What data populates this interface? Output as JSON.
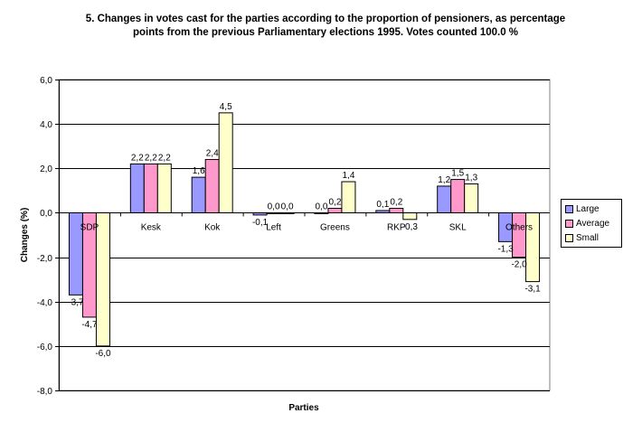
{
  "chart_data": {
    "type": "bar",
    "title_lines": [
      "5. Changes in votes cast for the parties according to the proportion of pensioners, as percentage",
      "points from the previous Parliamentary elections 1995. Votes counted 100.0 %"
    ],
    "xlabel": "Parties",
    "ylabel": "Changes (%)",
    "ylim": [
      -8,
      6
    ],
    "yticks": [
      6,
      4,
      2,
      0,
      -2,
      -4,
      -6,
      -8
    ],
    "ytick_labels": [
      "6,0",
      "4,0",
      "2,0",
      "0,0",
      "-2,0",
      "-4,0",
      "-6,0",
      "-8,0"
    ],
    "categories": [
      "SDP",
      "Kesk",
      "Kok",
      "Left",
      "Greens",
      "RKP",
      "SKL",
      "Others"
    ],
    "series": [
      {
        "name": "Large",
        "color": "#9999FF",
        "values": [
          -3.7,
          2.2,
          1.6,
          -0.1,
          0.0,
          0.1,
          1.2,
          -1.3
        ],
        "labels": [
          "-3,7",
          "2,2",
          "1,6",
          "-0,1",
          "0,0",
          "0,1",
          "1,2",
          "-1,3"
        ]
      },
      {
        "name": "Average",
        "color": "#FF99CC",
        "values": [
          -4.7,
          2.2,
          2.4,
          0.0,
          0.2,
          0.2,
          1.5,
          -2.0
        ],
        "labels": [
          "-4,7",
          "2,2",
          "2,4",
          "0,0",
          "0,2",
          "0,2",
          "1,5",
          "-2,0"
        ]
      },
      {
        "name": "Small",
        "color": "#FFFFCC",
        "values": [
          -6.0,
          2.2,
          4.5,
          0.0,
          1.4,
          -0.3,
          1.3,
          -3.1
        ],
        "labels": [
          "-6,0",
          "2,2",
          "4,5",
          "0,0",
          "1,4",
          "-0,3",
          "1,3",
          "-3,1"
        ]
      }
    ],
    "grid": true,
    "legend_position": "right"
  }
}
